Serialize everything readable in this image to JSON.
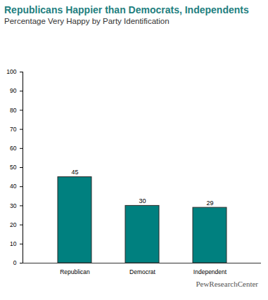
{
  "chart_data": {
    "type": "bar",
    "title": "Republicans Happier than Democrats, Independents",
    "subtitle": "Percentage Very Happy by Party Identification",
    "caption": "PewResearchCenter",
    "categories": [
      "Republican",
      "Democrat",
      "Independent"
    ],
    "values": [
      45,
      30,
      29
    ],
    "color": "#00807f",
    "ylim": [
      0,
      100
    ],
    "yticks": [
      0,
      10,
      20,
      30,
      40,
      50,
      60,
      70,
      80,
      90,
      100
    ],
    "grid": false,
    "data_labels": true
  }
}
